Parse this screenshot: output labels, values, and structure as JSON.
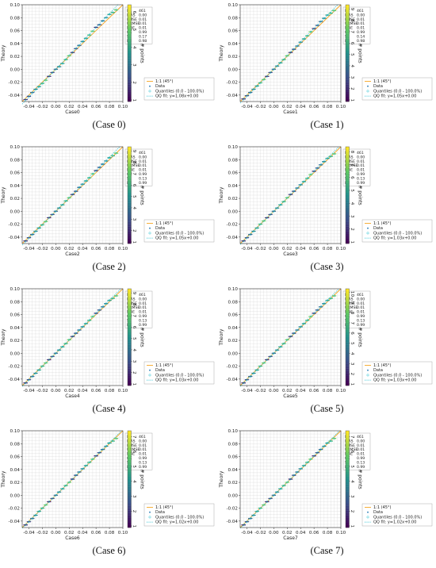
{
  "figure": {
    "panels": [
      {
        "caption": "(Case 0)",
        "xlabel": "Case0",
        "ylabel": "Theory",
        "colorbar_label": "# points",
        "colorbar_ticks": [
          "1",
          "2",
          "3",
          "4",
          "5",
          "6"
        ],
        "stats": [
          [
            "N",
            "461"
          ],
          [
            "BIAS",
            "0.00"
          ],
          [
            "RMSE",
            "0.01"
          ],
          [
            "URMSE",
            "0.01"
          ],
          [
            "MAE",
            "0.01"
          ],
          [
            "CC",
            "0.99"
          ],
          [
            "SI",
            "0.17"
          ],
          [
            "R2",
            "0.98"
          ]
        ],
        "legend": [
          "1:1 (45°)",
          "Data",
          "Quantiles (0.0 - 100.0%)",
          "QQ fit: y=1.08x+0.00"
        ]
      },
      {
        "caption": "(Case 1)",
        "xlabel": "Case1",
        "ylabel": "Theory",
        "colorbar_label": "# points",
        "colorbar_ticks": [
          "1",
          "2",
          "3",
          "4",
          "5",
          "6",
          "7",
          "8",
          "9"
        ],
        "stats": [
          [
            "N",
            "461"
          ],
          [
            "BIAS",
            "0.00"
          ],
          [
            "RMSE",
            "0.01"
          ],
          [
            "URMSE",
            "0.01"
          ],
          [
            "MAE",
            "0.01"
          ],
          [
            "CC",
            "0.99"
          ],
          [
            "SI",
            "0.14"
          ],
          [
            "R2",
            "0.98"
          ]
        ],
        "legend": [
          "1:1 (45°)",
          "Data",
          "Quantiles (0.0 - 100.0%)",
          "QQ fit: y=1.05x+0.00"
        ]
      },
      {
        "caption": "(Case 2)",
        "xlabel": "Case2",
        "ylabel": "Theory",
        "colorbar_label": "# points",
        "colorbar_ticks": [
          "1",
          "2",
          "3",
          "4",
          "5",
          "6",
          "7",
          "8",
          "9"
        ],
        "stats": [
          [
            "N",
            "461"
          ],
          [
            "BIAS",
            "0.00"
          ],
          [
            "RMSE",
            "0.01"
          ],
          [
            "URMSE",
            "0.01"
          ],
          [
            "MAE",
            "0.01"
          ],
          [
            "CC",
            "0.99"
          ],
          [
            "SI",
            "0.13"
          ],
          [
            "R2",
            "0.99"
          ]
        ],
        "legend": [
          "1:1 (45°)",
          "Data",
          "Quantiles (0.0 - 100.0%)",
          "QQ fit: y=1.05x+0.00"
        ]
      },
      {
        "caption": "(Case 3)",
        "xlabel": "Case3",
        "ylabel": "Theory",
        "colorbar_label": "# points",
        "colorbar_ticks": [
          "1",
          "2",
          "3",
          "4",
          "5",
          "6",
          "7",
          "8"
        ],
        "stats": [
          [
            "N",
            "461"
          ],
          [
            "BIAS",
            "0.00"
          ],
          [
            "RMSE",
            "0.01"
          ],
          [
            "URMSE",
            "0.01"
          ],
          [
            "MAE",
            "0.01"
          ],
          [
            "CC",
            "0.99"
          ],
          [
            "SI",
            "0.13"
          ],
          [
            "R2",
            "0.99"
          ]
        ],
        "legend": [
          "1:1 (45°)",
          "Data",
          "Quantiles (0.0 - 100.0%)",
          "QQ fit: y=1.03x+0.00"
        ]
      },
      {
        "caption": "(Case 4)",
        "xlabel": "Case4",
        "ylabel": "Theory",
        "colorbar_label": "# points",
        "colorbar_ticks": [
          "1",
          "2",
          "3",
          "4",
          "5",
          "6",
          "7",
          "8",
          "9"
        ],
        "stats": [
          [
            "N",
            "461"
          ],
          [
            "BIAS",
            "0.00"
          ],
          [
            "RMSE",
            "0.01"
          ],
          [
            "URMSE",
            "0.01"
          ],
          [
            "MAE",
            "0.01"
          ],
          [
            "CC",
            "0.99"
          ],
          [
            "SI",
            "0.13"
          ],
          [
            "R2",
            "0.99"
          ]
        ],
        "legend": [
          "1:1 (45°)",
          "Data",
          "Quantiles (0.0 - 100.0%)",
          "QQ fit: y=1.03x+0.00"
        ]
      },
      {
        "caption": "(Case 5)",
        "xlabel": "Case5",
        "ylabel": "Theory",
        "colorbar_label": "# points",
        "colorbar_ticks": [
          "1",
          "2",
          "3",
          "4",
          "5",
          "6",
          "7",
          "8",
          "9",
          "10"
        ],
        "stats": [
          [
            "N",
            "461"
          ],
          [
            "BIAS",
            "0.00"
          ],
          [
            "RMSE",
            "0.01"
          ],
          [
            "URMSE",
            "0.01"
          ],
          [
            "MAE",
            "0.01"
          ],
          [
            "CC",
            "0.99"
          ],
          [
            "SI",
            "0.13"
          ],
          [
            "R2",
            "0.99"
          ]
        ],
        "legend": [
          "1:1 (45°)",
          "Data",
          "Quantiles (0.0 - 100.0%)",
          "QQ fit: y=1.03x+0.00"
        ]
      },
      {
        "caption": "(Case 6)",
        "xlabel": "Case6",
        "ylabel": "Theory",
        "colorbar_label": "# points",
        "colorbar_ticks": [
          "1",
          "2",
          "3",
          "4",
          "5",
          "6",
          "7"
        ],
        "stats": [
          [
            "N",
            "461"
          ],
          [
            "BIAS",
            "0.00"
          ],
          [
            "RMSE",
            "0.01"
          ],
          [
            "URMSE",
            "0.01"
          ],
          [
            "MAE",
            "0.01"
          ],
          [
            "CC",
            "0.99"
          ],
          [
            "SI",
            "0.13"
          ],
          [
            "R2",
            "0.99"
          ]
        ],
        "legend": [
          "1:1 (45°)",
          "Data",
          "Quantiles (0.0 - 100.0%)",
          "QQ fit: y=1.02x+0.00"
        ]
      },
      {
        "caption": "(Case 7)",
        "xlabel": "Case7",
        "ylabel": "Theory",
        "colorbar_label": "# points",
        "colorbar_ticks": [
          "1",
          "2",
          "3",
          "4",
          "5",
          "6",
          "7"
        ],
        "stats": [
          [
            "N",
            "461"
          ],
          [
            "BIAS",
            "0.00"
          ],
          [
            "RMSE",
            "0.01"
          ],
          [
            "URMSE",
            "0.01"
          ],
          [
            "MAE",
            "0.01"
          ],
          [
            "CC",
            "0.99"
          ],
          [
            "SI",
            "0.13"
          ],
          [
            "R2",
            "0.99"
          ]
        ],
        "legend": [
          "1:1 (45°)",
          "Data",
          "Quantiles (0.0 - 100.0%)",
          "QQ fit: y=1.02x+0.00"
        ]
      }
    ]
  },
  "chart_data": [
    {
      "type": "scatter",
      "name": "Case0",
      "xlim": [
        -0.05,
        0.1
      ],
      "ylim": [
        -0.05,
        0.1
      ],
      "xticks": [
        "-0.04",
        "-0.02",
        "0.00",
        "0.02",
        "0.04",
        "0.06",
        "0.08",
        "0.10"
      ],
      "yticks": [
        "-0.04",
        "-0.02",
        "0.00",
        "0.02",
        "0.04",
        "0.06",
        "0.08",
        "0.10"
      ],
      "grid": true,
      "legend_position": "lower-right",
      "qq_slope": 1.08,
      "qq_intercept": 0.0,
      "colorbar_max": 6,
      "x": [
        -0.045,
        -0.04,
        -0.035,
        -0.03,
        -0.025,
        -0.02,
        -0.015,
        -0.01,
        -0.005,
        0.0,
        0.005,
        0.01,
        0.015,
        0.02,
        0.025,
        0.03,
        0.035,
        0.04,
        0.045,
        0.05,
        0.055,
        0.06,
        0.065,
        0.07,
        0.075,
        0.08,
        0.085,
        0.09
      ],
      "y": [
        -0.047,
        -0.042,
        -0.036,
        -0.031,
        -0.027,
        -0.022,
        -0.017,
        -0.011,
        -0.005,
        0.0,
        0.004,
        0.009,
        0.015,
        0.021,
        0.026,
        0.032,
        0.037,
        0.043,
        0.048,
        0.053,
        0.059,
        0.065,
        0.069,
        0.075,
        0.08,
        0.085,
        0.088,
        0.092
      ]
    },
    {
      "type": "scatter",
      "name": "Case1",
      "xlim": [
        -0.05,
        0.1
      ],
      "ylim": [
        -0.05,
        0.1
      ],
      "xticks": [
        "-0.04",
        "-0.02",
        "0.00",
        "0.02",
        "0.04",
        "0.06",
        "0.08",
        "0.10"
      ],
      "yticks": [
        "-0.04",
        "-0.02",
        "0.00",
        "0.02",
        "0.04",
        "0.06",
        "0.08",
        "0.10"
      ],
      "grid": true,
      "legend_position": "lower-right",
      "qq_slope": 1.05,
      "qq_intercept": 0.0,
      "colorbar_max": 9,
      "x": [
        -0.045,
        -0.04,
        -0.035,
        -0.03,
        -0.025,
        -0.02,
        -0.015,
        -0.01,
        -0.005,
        0.0,
        0.005,
        0.01,
        0.015,
        0.02,
        0.025,
        0.03,
        0.035,
        0.04,
        0.045,
        0.05,
        0.055,
        0.06,
        0.065,
        0.07,
        0.075,
        0.08,
        0.085,
        0.09
      ],
      "y": [
        -0.046,
        -0.041,
        -0.036,
        -0.031,
        -0.026,
        -0.021,
        -0.016,
        -0.011,
        -0.005,
        0.0,
        0.005,
        0.01,
        0.015,
        0.021,
        0.026,
        0.031,
        0.036,
        0.042,
        0.047,
        0.052,
        0.058,
        0.063,
        0.068,
        0.074,
        0.079,
        0.084,
        0.087,
        0.091
      ]
    },
    {
      "type": "scatter",
      "name": "Case2",
      "xlim": [
        -0.05,
        0.1
      ],
      "ylim": [
        -0.05,
        0.1
      ],
      "xticks": [
        "-0.04",
        "-0.02",
        "0.00",
        "0.02",
        "0.04",
        "0.06",
        "0.08",
        "0.10"
      ],
      "yticks": [
        "-0.04",
        "-0.02",
        "0.00",
        "0.02",
        "0.04",
        "0.06",
        "0.08",
        "0.10"
      ],
      "grid": true,
      "legend_position": "lower-right",
      "qq_slope": 1.05,
      "qq_intercept": 0.0,
      "colorbar_max": 9,
      "x": [
        -0.045,
        -0.04,
        -0.035,
        -0.03,
        -0.025,
        -0.02,
        -0.015,
        -0.01,
        -0.005,
        0.0,
        0.005,
        0.01,
        0.015,
        0.02,
        0.025,
        0.03,
        0.035,
        0.04,
        0.045,
        0.05,
        0.055,
        0.06,
        0.065,
        0.07,
        0.075,
        0.08,
        0.085,
        0.09
      ],
      "y": [
        -0.046,
        -0.041,
        -0.036,
        -0.031,
        -0.026,
        -0.021,
        -0.016,
        -0.01,
        -0.005,
        0.0,
        0.005,
        0.01,
        0.016,
        0.021,
        0.026,
        0.031,
        0.037,
        0.042,
        0.047,
        0.052,
        0.058,
        0.063,
        0.068,
        0.073,
        0.078,
        0.083,
        0.086,
        0.09
      ]
    },
    {
      "type": "scatter",
      "name": "Case3",
      "xlim": [
        -0.05,
        0.1
      ],
      "ylim": [
        -0.05,
        0.1
      ],
      "xticks": [
        "-0.04",
        "-0.02",
        "0.00",
        "0.02",
        "0.04",
        "0.06",
        "0.08",
        "0.10"
      ],
      "yticks": [
        "-0.04",
        "-0.02",
        "0.00",
        "0.02",
        "0.04",
        "0.06",
        "0.08",
        "0.10"
      ],
      "grid": true,
      "legend_position": "lower-right",
      "qq_slope": 1.03,
      "qq_intercept": 0.0,
      "colorbar_max": 8,
      "x": [
        -0.045,
        -0.04,
        -0.035,
        -0.03,
        -0.025,
        -0.02,
        -0.015,
        -0.01,
        -0.005,
        0.0,
        0.005,
        0.01,
        0.015,
        0.02,
        0.025,
        0.03,
        0.035,
        0.04,
        0.045,
        0.05,
        0.055,
        0.06,
        0.065,
        0.07,
        0.075,
        0.08,
        0.085,
        0.09
      ],
      "y": [
        -0.046,
        -0.041,
        -0.036,
        -0.031,
        -0.026,
        -0.02,
        -0.015,
        -0.01,
        -0.005,
        0.0,
        0.005,
        0.01,
        0.015,
        0.021,
        0.026,
        0.031,
        0.036,
        0.041,
        0.046,
        0.051,
        0.057,
        0.062,
        0.067,
        0.072,
        0.077,
        0.082,
        0.085,
        0.089
      ]
    },
    {
      "type": "scatter",
      "name": "Case4",
      "xlim": [
        -0.05,
        0.1
      ],
      "ylim": [
        -0.05,
        0.1
      ],
      "xticks": [
        "-0.04",
        "-0.02",
        "0.00",
        "0.02",
        "0.04",
        "0.06",
        "0.08",
        "0.10"
      ],
      "yticks": [
        "-0.04",
        "-0.02",
        "0.00",
        "0.02",
        "0.04",
        "0.06",
        "0.08",
        "0.10"
      ],
      "grid": true,
      "legend_position": "lower-right",
      "qq_slope": 1.03,
      "qq_intercept": 0.0,
      "colorbar_max": 9,
      "x": [
        -0.045,
        -0.04,
        -0.035,
        -0.03,
        -0.025,
        -0.02,
        -0.015,
        -0.01,
        -0.005,
        0.0,
        0.005,
        0.01,
        0.015,
        0.02,
        0.025,
        0.03,
        0.035,
        0.04,
        0.045,
        0.05,
        0.055,
        0.06,
        0.065,
        0.07,
        0.075,
        0.08,
        0.085,
        0.09
      ],
      "y": [
        -0.046,
        -0.041,
        -0.036,
        -0.031,
        -0.026,
        -0.02,
        -0.015,
        -0.01,
        -0.005,
        0.0,
        0.005,
        0.01,
        0.015,
        0.021,
        0.026,
        0.031,
        0.036,
        0.041,
        0.046,
        0.051,
        0.057,
        0.062,
        0.067,
        0.072,
        0.077,
        0.082,
        0.085,
        0.089
      ]
    },
    {
      "type": "scatter",
      "name": "Case5",
      "xlim": [
        -0.05,
        0.1
      ],
      "ylim": [
        -0.05,
        0.1
      ],
      "xticks": [
        "-0.04",
        "-0.02",
        "0.00",
        "0.02",
        "0.04",
        "0.06",
        "0.08",
        "0.10"
      ],
      "yticks": [
        "-0.04",
        "-0.02",
        "0.00",
        "0.02",
        "0.04",
        "0.06",
        "0.08",
        "0.10"
      ],
      "grid": true,
      "legend_position": "lower-right",
      "qq_slope": 1.03,
      "qq_intercept": 0.0,
      "colorbar_max": 10,
      "x": [
        -0.045,
        -0.04,
        -0.035,
        -0.03,
        -0.025,
        -0.02,
        -0.015,
        -0.01,
        -0.005,
        0.0,
        0.005,
        0.01,
        0.015,
        0.02,
        0.025,
        0.03,
        0.035,
        0.04,
        0.045,
        0.05,
        0.055,
        0.06,
        0.065,
        0.07,
        0.075,
        0.08,
        0.085,
        0.09
      ],
      "y": [
        -0.046,
        -0.041,
        -0.036,
        -0.031,
        -0.026,
        -0.02,
        -0.015,
        -0.01,
        -0.005,
        0.0,
        0.005,
        0.01,
        0.015,
        0.021,
        0.026,
        0.031,
        0.036,
        0.041,
        0.046,
        0.051,
        0.057,
        0.062,
        0.067,
        0.072,
        0.077,
        0.082,
        0.085,
        0.089
      ]
    },
    {
      "type": "scatter",
      "name": "Case6",
      "xlim": [
        -0.05,
        0.1
      ],
      "ylim": [
        -0.05,
        0.1
      ],
      "xticks": [
        "-0.04",
        "-0.02",
        "0.00",
        "0.02",
        "0.04",
        "0.06",
        "0.08",
        "0.10"
      ],
      "yticks": [
        "-0.04",
        "-0.02",
        "0.00",
        "0.02",
        "0.04",
        "0.06",
        "0.08",
        "0.10"
      ],
      "grid": true,
      "legend_position": "lower-right",
      "qq_slope": 1.02,
      "qq_intercept": 0.0,
      "colorbar_max": 7,
      "x": [
        -0.045,
        -0.04,
        -0.035,
        -0.03,
        -0.025,
        -0.02,
        -0.015,
        -0.01,
        -0.005,
        0.0,
        0.005,
        0.01,
        0.015,
        0.02,
        0.025,
        0.03,
        0.035,
        0.04,
        0.045,
        0.05,
        0.055,
        0.06,
        0.065,
        0.07,
        0.075,
        0.08,
        0.085,
        0.09
      ],
      "y": [
        -0.046,
        -0.041,
        -0.036,
        -0.031,
        -0.025,
        -0.02,
        -0.015,
        -0.01,
        -0.005,
        0.0,
        0.005,
        0.01,
        0.015,
        0.02,
        0.025,
        0.031,
        0.036,
        0.041,
        0.046,
        0.051,
        0.056,
        0.061,
        0.066,
        0.071,
        0.076,
        0.081,
        0.084,
        0.088
      ]
    },
    {
      "type": "scatter",
      "name": "Case7",
      "xlim": [
        -0.05,
        0.1
      ],
      "ylim": [
        -0.05,
        0.1
      ],
      "xticks": [
        "-0.04",
        "-0.02",
        "0.00",
        "0.02",
        "0.04",
        "0.06",
        "0.08",
        "0.10"
      ],
      "yticks": [
        "-0.04",
        "-0.02",
        "0.00",
        "0.02",
        "0.04",
        "0.06",
        "0.08",
        "0.10"
      ],
      "grid": true,
      "legend_position": "lower-right",
      "qq_slope": 1.02,
      "qq_intercept": 0.0,
      "colorbar_max": 7,
      "x": [
        -0.045,
        -0.04,
        -0.035,
        -0.03,
        -0.025,
        -0.02,
        -0.015,
        -0.01,
        -0.005,
        0.0,
        0.005,
        0.01,
        0.015,
        0.02,
        0.025,
        0.03,
        0.035,
        0.04,
        0.045,
        0.05,
        0.055,
        0.06,
        0.065,
        0.07,
        0.075,
        0.08,
        0.085,
        0.09
      ],
      "y": [
        -0.046,
        -0.041,
        -0.036,
        -0.031,
        -0.025,
        -0.02,
        -0.015,
        -0.01,
        -0.005,
        0.0,
        0.005,
        0.01,
        0.015,
        0.02,
        0.025,
        0.031,
        0.036,
        0.041,
        0.046,
        0.051,
        0.056,
        0.061,
        0.066,
        0.071,
        0.076,
        0.081,
        0.084,
        0.088
      ]
    }
  ],
  "colors": {
    "identity_line": "#f5a623",
    "data": "#1f77b4",
    "quantiles": "#17becf",
    "qq_fit": "#17becf",
    "grid": "#d9d9d9"
  }
}
